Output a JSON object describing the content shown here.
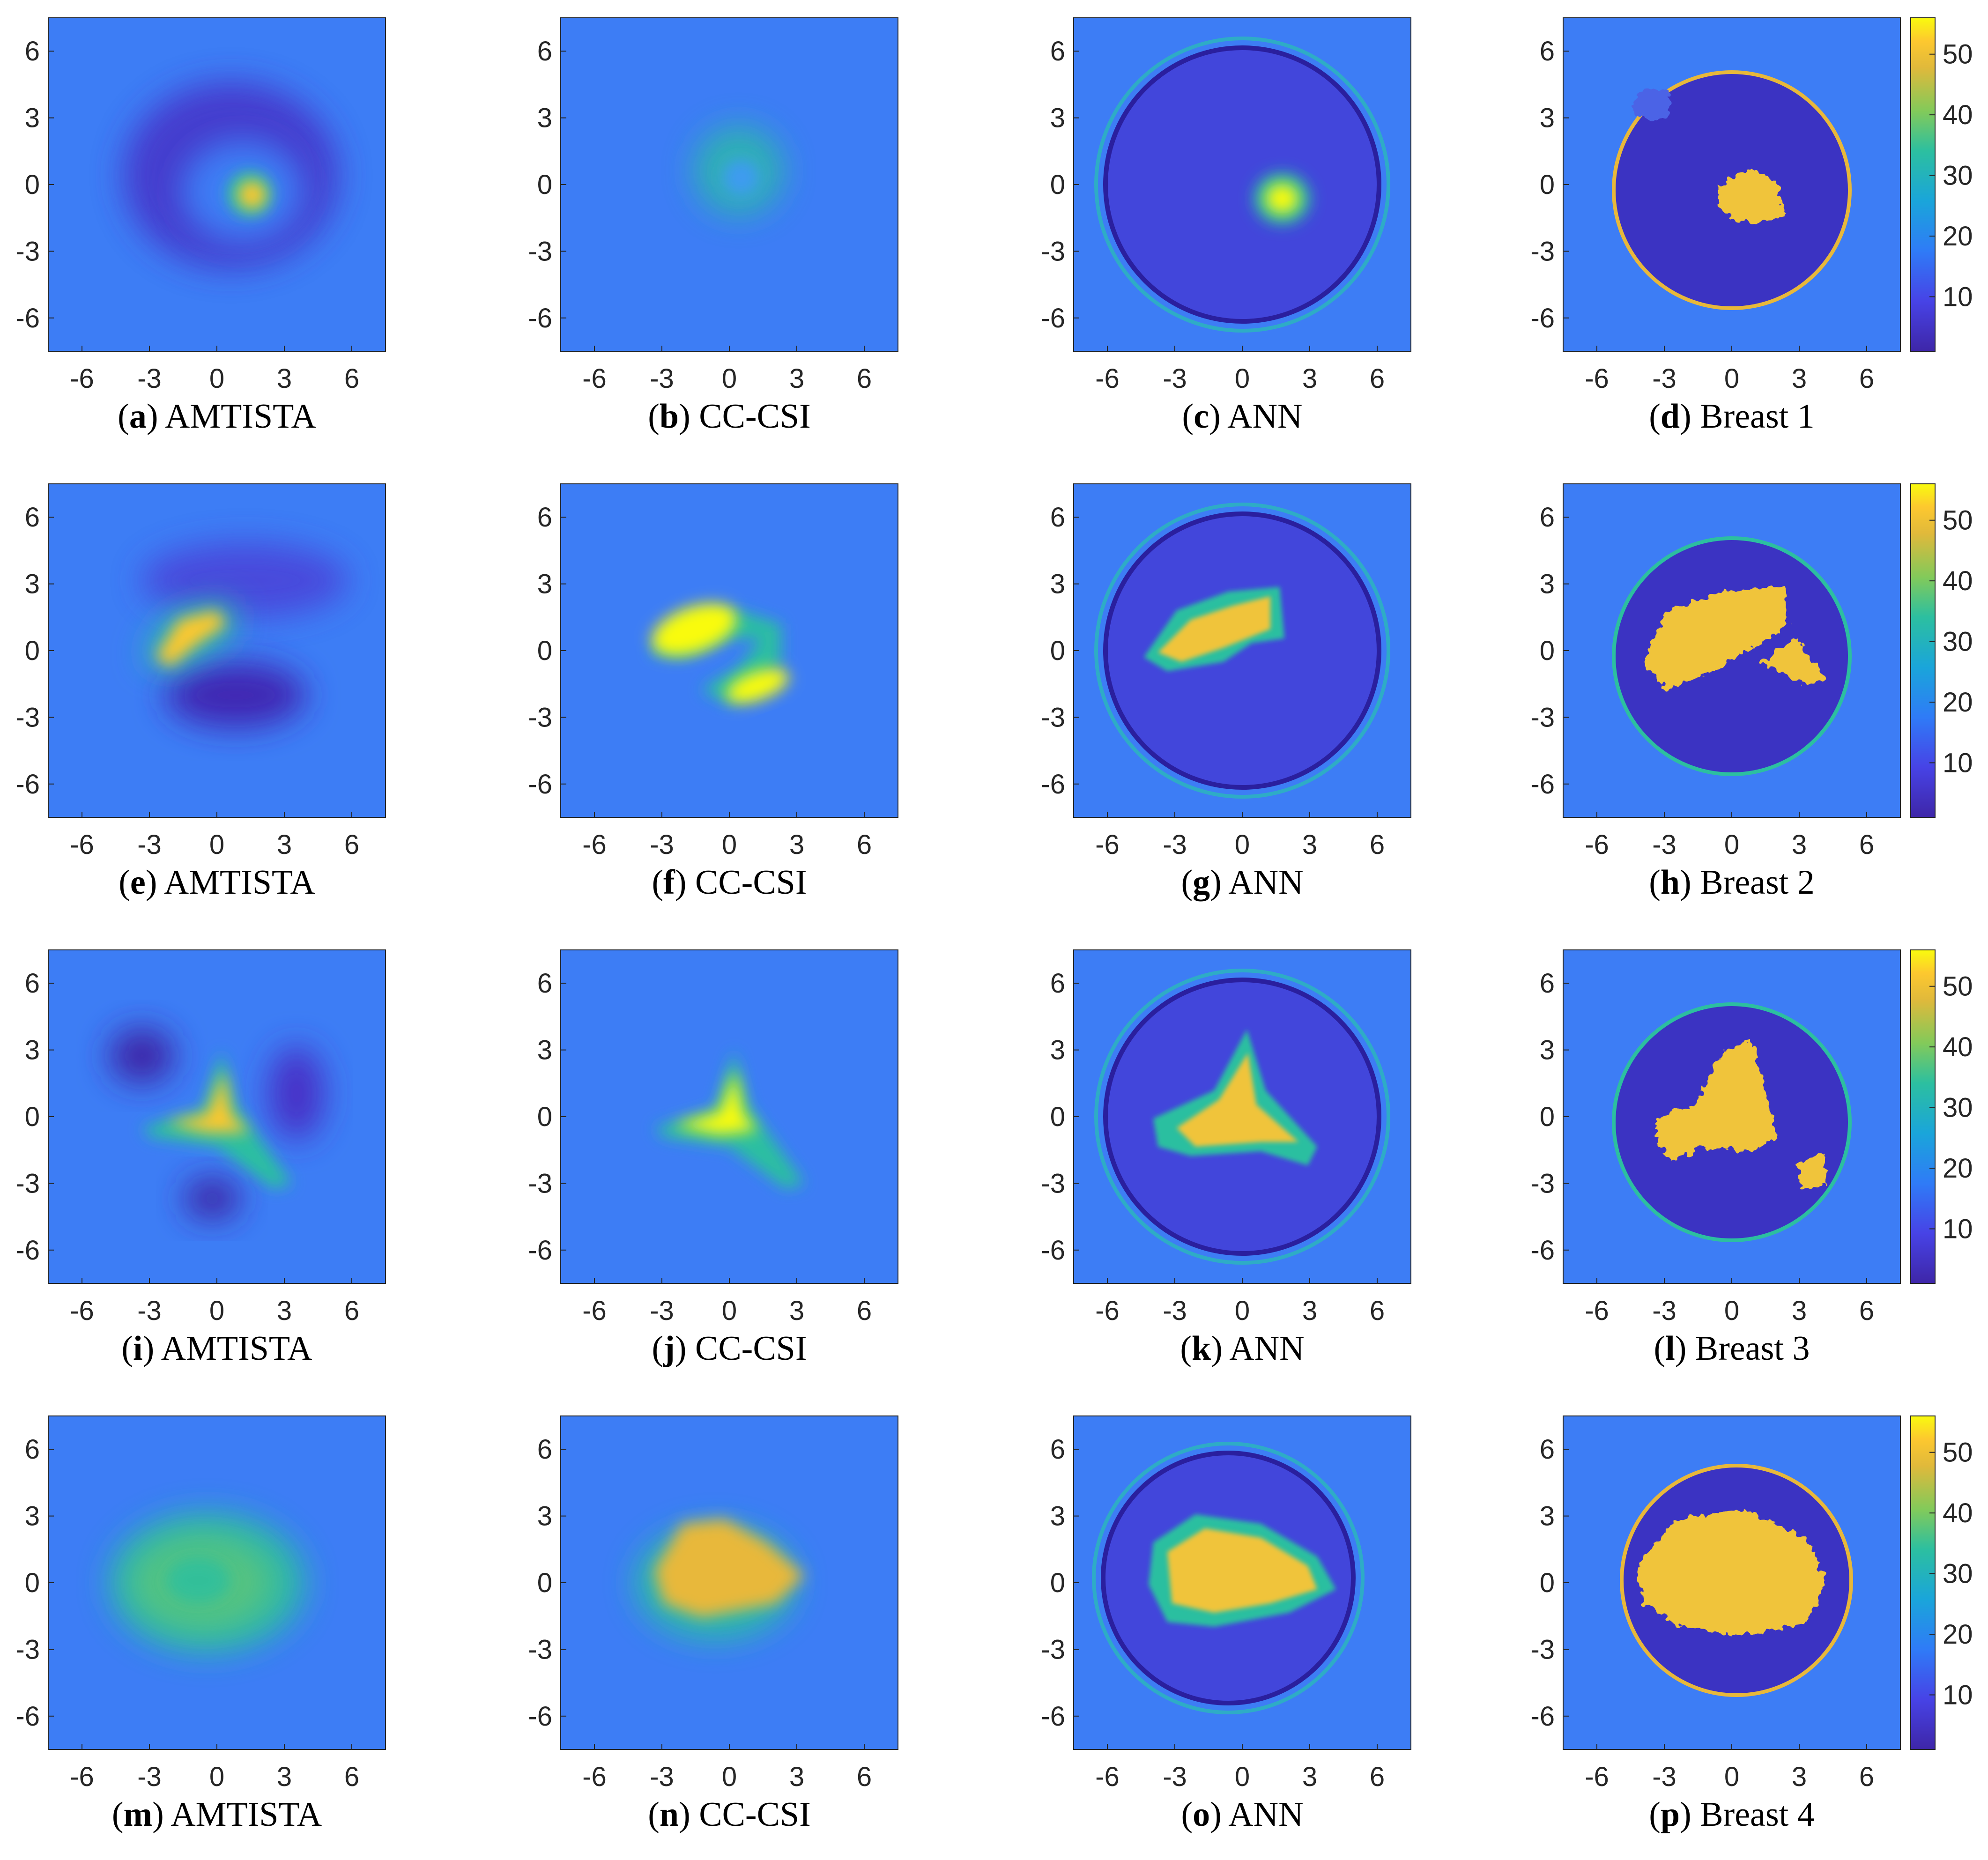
{
  "figure": {
    "colormap": "parula",
    "colors": {
      "background": "#3d7df5",
      "low": "#3e26a8",
      "mid": "#2ab8ba",
      "high": "#f9fb0e",
      "tick_text": "#262626",
      "axes_border": "#262626"
    },
    "axes": {
      "xlim": [
        -7.5,
        7.5
      ],
      "ylim": [
        -7.5,
        7.5
      ],
      "xticks": [
        -6,
        -3,
        0,
        3,
        6
      ],
      "yticks": [
        6,
        3,
        0,
        -3,
        -6
      ],
      "xtick_labels": [
        "-6",
        "-3",
        "0",
        "3",
        "6"
      ],
      "ytick_labels": [
        "6",
        "3",
        "0",
        "-3",
        "-6"
      ]
    },
    "colorbar": {
      "ticks": [
        10,
        20,
        30,
        40,
        50
      ],
      "tick_labels": [
        "10",
        "20",
        "30",
        "40",
        "50"
      ],
      "range": [
        1,
        56
      ]
    }
  },
  "chart_data": [
    {
      "id": "a",
      "type": "heatmap",
      "caption_letter": "a",
      "caption_text": "AMTISTA",
      "row": 0,
      "col": 0,
      "method": "amtista",
      "scene": 1
    },
    {
      "id": "b",
      "type": "heatmap",
      "caption_letter": "b",
      "caption_text": "CC-CSI",
      "row": 0,
      "col": 1,
      "method": "cccsi",
      "scene": 1
    },
    {
      "id": "c",
      "type": "heatmap",
      "caption_letter": "c",
      "caption_text": "ANN",
      "row": 0,
      "col": 2,
      "method": "ann",
      "scene": 1
    },
    {
      "id": "d",
      "type": "heatmap",
      "caption_letter": "d",
      "caption_text": "Breast 1",
      "row": 0,
      "col": 3,
      "method": "truth",
      "scene": 1,
      "colorbar": true
    },
    {
      "id": "e",
      "type": "heatmap",
      "caption_letter": "e",
      "caption_text": "AMTISTA",
      "row": 1,
      "col": 0,
      "method": "amtista",
      "scene": 2
    },
    {
      "id": "f",
      "type": "heatmap",
      "caption_letter": "f",
      "caption_text": "CC-CSI",
      "row": 1,
      "col": 1,
      "method": "cccsi",
      "scene": 2
    },
    {
      "id": "g",
      "type": "heatmap",
      "caption_letter": "g",
      "caption_text": "ANN",
      "row": 1,
      "col": 2,
      "method": "ann",
      "scene": 2
    },
    {
      "id": "h",
      "type": "heatmap",
      "caption_letter": "h",
      "caption_text": "Breast 2",
      "row": 1,
      "col": 3,
      "method": "truth",
      "scene": 2,
      "colorbar": true
    },
    {
      "id": "i",
      "type": "heatmap",
      "caption_letter": "i",
      "caption_text": "AMTISTA",
      "row": 2,
      "col": 0,
      "method": "amtista",
      "scene": 3
    },
    {
      "id": "j",
      "type": "heatmap",
      "caption_letter": "j",
      "caption_text": "CC-CSI",
      "row": 2,
      "col": 1,
      "method": "cccsi",
      "scene": 3
    },
    {
      "id": "k",
      "type": "heatmap",
      "caption_letter": "k",
      "caption_text": "ANN",
      "row": 2,
      "col": 2,
      "method": "ann",
      "scene": 3
    },
    {
      "id": "l",
      "type": "heatmap",
      "caption_letter": "l",
      "caption_text": "Breast 3",
      "row": 2,
      "col": 3,
      "method": "truth",
      "scene": 3,
      "colorbar": true
    },
    {
      "id": "m",
      "type": "heatmap",
      "caption_letter": "m",
      "caption_text": "AMTISTA",
      "row": 3,
      "col": 0,
      "method": "amtista",
      "scene": 4
    },
    {
      "id": "n",
      "type": "heatmap",
      "caption_letter": "n",
      "caption_text": "CC-CSI",
      "row": 3,
      "col": 1,
      "method": "cccsi",
      "scene": 4
    },
    {
      "id": "o",
      "type": "heatmap",
      "caption_letter": "o",
      "caption_text": "ANN",
      "row": 3,
      "col": 2,
      "method": "ann",
      "scene": 4
    },
    {
      "id": "p",
      "type": "heatmap",
      "caption_letter": "p",
      "caption_text": "Breast 4",
      "row": 3,
      "col": 3,
      "method": "truth",
      "scene": 4,
      "colorbar": true
    }
  ]
}
